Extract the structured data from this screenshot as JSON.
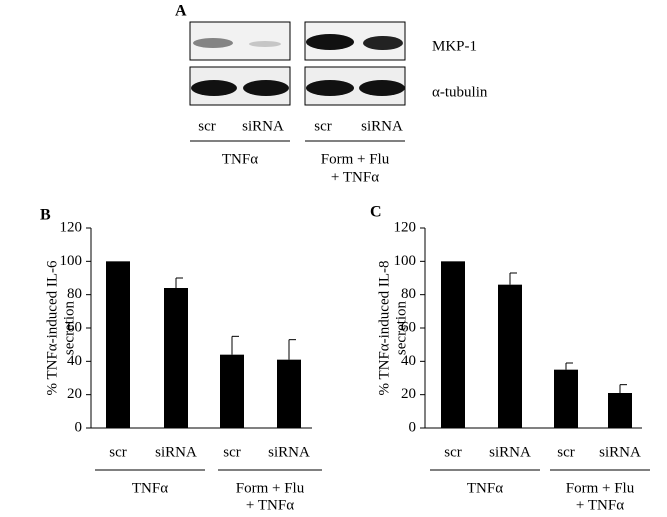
{
  "panel_a": {
    "panel": "A",
    "rows": [
      "MKP-1",
      "α-tubulin"
    ],
    "lanes": [
      "scr",
      "siRNA",
      "scr",
      "siRNA"
    ],
    "groups": [
      [
        "TNFα"
      ],
      [
        "Form + Flu",
        "+ TNFα"
      ]
    ]
  },
  "chart_data": [
    {
      "type": "bar",
      "panel": "B",
      "ylabel": [
        "% TNFα-induced IL-6",
        "secretion"
      ],
      "categories": [
        "scr",
        "siRNA",
        "scr",
        "siRNA"
      ],
      "groups": [
        [
          "TNFα"
        ],
        [
          "Form + Flu",
          "+ TNFα"
        ]
      ],
      "values": [
        100,
        84,
        44,
        41
      ],
      "errors": [
        null,
        6,
        11,
        12
      ],
      "color": "#000000",
      "ylim": [
        0,
        120
      ],
      "yticks": [
        0,
        20,
        40,
        60,
        80,
        100,
        120
      ]
    },
    {
      "type": "bar",
      "panel": "C",
      "ylabel": [
        "% TNFα-induced IL-8",
        "secretion"
      ],
      "categories": [
        "scr",
        "siRNA",
        "scr",
        "siRNA"
      ],
      "groups": [
        [
          "TNFα"
        ],
        [
          "Form + Flu",
          "+ TNFα"
        ]
      ],
      "values": [
        100,
        86,
        35,
        21
      ],
      "errors": [
        null,
        7,
        4,
        5
      ],
      "color": "#000000",
      "ylim": [
        0,
        120
      ],
      "yticks": [
        0,
        20,
        40,
        60,
        80,
        100,
        120
      ]
    }
  ]
}
